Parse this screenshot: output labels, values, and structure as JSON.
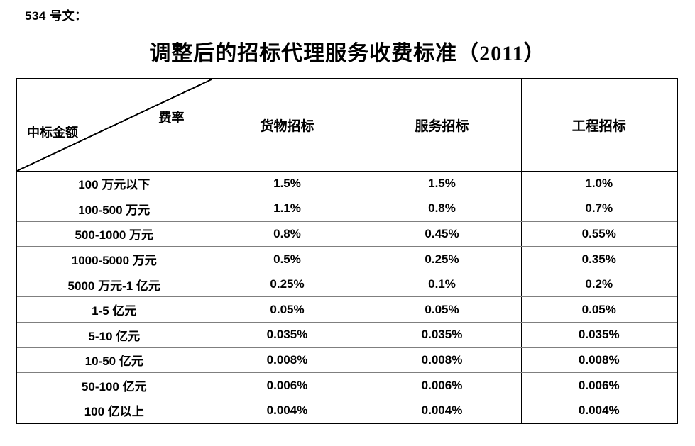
{
  "page": {
    "doc_label": "534 号文：",
    "title": "调整后的招标代理服务收费标准（2011）"
  },
  "table": {
    "corner": {
      "top_right_label": "费率",
      "bottom_left_label": "中标金额"
    },
    "columns": [
      "货物招标",
      "服务招标",
      "工程招标"
    ],
    "rows": [
      {
        "label": "100 万元以下",
        "values": [
          "1.5%",
          "1.5%",
          "1.0%"
        ]
      },
      {
        "label": "100-500 万元",
        "values": [
          "1.1%",
          "0.8%",
          "0.7%"
        ]
      },
      {
        "label": "500-1000 万元",
        "values": [
          "0.8%",
          "0.45%",
          "0.55%"
        ]
      },
      {
        "label": "1000-5000 万元",
        "values": [
          "0.5%",
          "0.25%",
          "0.35%"
        ]
      },
      {
        "label": "5000 万元-1 亿元",
        "values": [
          "0.25%",
          "0.1%",
          "0.2%"
        ]
      },
      {
        "label": "1-5 亿元",
        "values": [
          "0.05%",
          "0.05%",
          "0.05%"
        ]
      },
      {
        "label": "5-10 亿元",
        "values": [
          "0.035%",
          "0.035%",
          "0.035%"
        ]
      },
      {
        "label": "10-50 亿元",
        "values": [
          "0.008%",
          "0.008%",
          "0.008%"
        ]
      },
      {
        "label": "50-100 亿元",
        "values": [
          "0.006%",
          "0.006%",
          "0.006%"
        ]
      },
      {
        "label": "100 亿以上",
        "values": [
          "0.004%",
          "0.004%",
          "0.004%"
        ]
      }
    ]
  },
  "chart_data": {
    "type": "table",
    "title": "调整后的招标代理服务收费标准（2011）",
    "row_header": "中标金额",
    "column_header": "费率",
    "categories": [
      "100 万元以下",
      "100-500 万元",
      "500-1000 万元",
      "1000-5000 万元",
      "5000 万元-1 亿元",
      "1-5 亿元",
      "5-10 亿元",
      "10-50 亿元",
      "50-100 亿元",
      "100 亿以上"
    ],
    "series": [
      {
        "name": "货物招标",
        "values": [
          "1.5%",
          "1.1%",
          "0.8%",
          "0.5%",
          "0.25%",
          "0.05%",
          "0.035%",
          "0.008%",
          "0.006%",
          "0.004%"
        ]
      },
      {
        "name": "服务招标",
        "values": [
          "1.5%",
          "0.8%",
          "0.45%",
          "0.25%",
          "0.1%",
          "0.05%",
          "0.035%",
          "0.008%",
          "0.006%",
          "0.004%"
        ]
      },
      {
        "name": "工程招标",
        "values": [
          "1.0%",
          "0.7%",
          "0.55%",
          "0.35%",
          "0.2%",
          "0.05%",
          "0.035%",
          "0.008%",
          "0.006%",
          "0.004%"
        ]
      }
    ],
    "colors": {
      "text": "#000000",
      "background": "#ffffff",
      "grid_inner": "#7f7f7f",
      "border": "#000000"
    }
  }
}
